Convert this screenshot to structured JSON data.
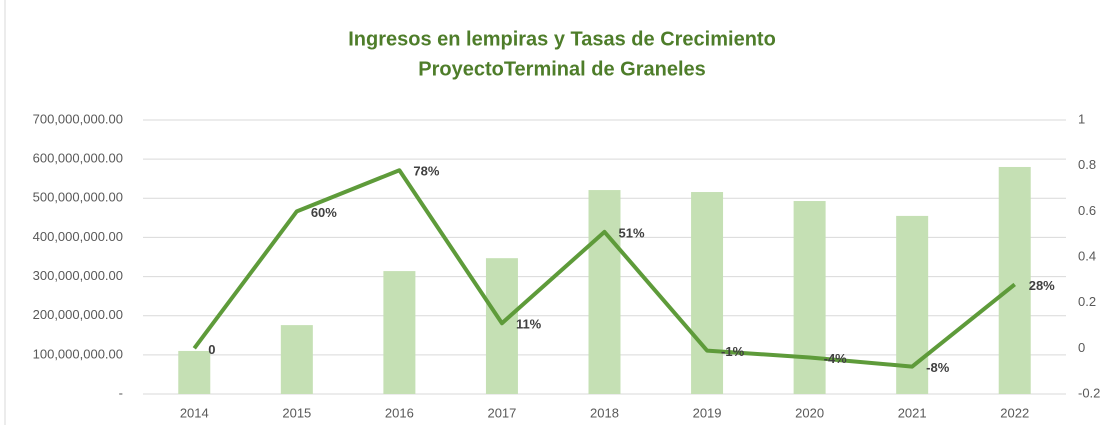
{
  "chart_data": {
    "type": "combo",
    "title": [
      "Ingresos en lempiras  y Tasas de Crecimiento",
      "ProyectoTerminal de Graneles"
    ],
    "categories": [
      "2014",
      "2015",
      "2016",
      "2017",
      "2018",
      "2019",
      "2020",
      "2021",
      "2022"
    ],
    "series": [
      {
        "type": "bar",
        "color": "#c5e0b4",
        "values": [
          110000000,
          176000000,
          314000000,
          347000000,
          521000000,
          516000000,
          493000000,
          455000000,
          580000000
        ]
      },
      {
        "type": "line",
        "axis": "y2",
        "color": "#5e9b3a",
        "values": [
          0,
          0.6,
          0.78,
          0.11,
          0.51,
          -0.01,
          -0.04,
          -0.08,
          0.28
        ],
        "value_labels": [
          "0",
          "60%",
          "78%",
          "11%",
          "51%",
          "-1%",
          "-4%",
          "-8%",
          "28%"
        ]
      }
    ],
    "ylim": [
      0,
      700000000
    ],
    "yticks": [
      {
        "value": 0,
        "label": "-"
      },
      {
        "value": 100000000,
        "label": "100,000,000.00"
      },
      {
        "value": 200000000,
        "label": "200,000,000.00"
      },
      {
        "value": 300000000,
        "label": "300,000,000.00"
      },
      {
        "value": 400000000,
        "label": "400,000,000.00"
      },
      {
        "value": 500000000,
        "label": "500,000,000.00"
      },
      {
        "value": 600000000,
        "label": "600,000,000.00"
      },
      {
        "value": 700000000,
        "label": "700,000,000.00"
      }
    ],
    "y2lim": [
      -0.2,
      1
    ],
    "y2ticks": [
      -0.2,
      0,
      0.2,
      0.4,
      0.6,
      0.8,
      1
    ],
    "grid": true
  }
}
